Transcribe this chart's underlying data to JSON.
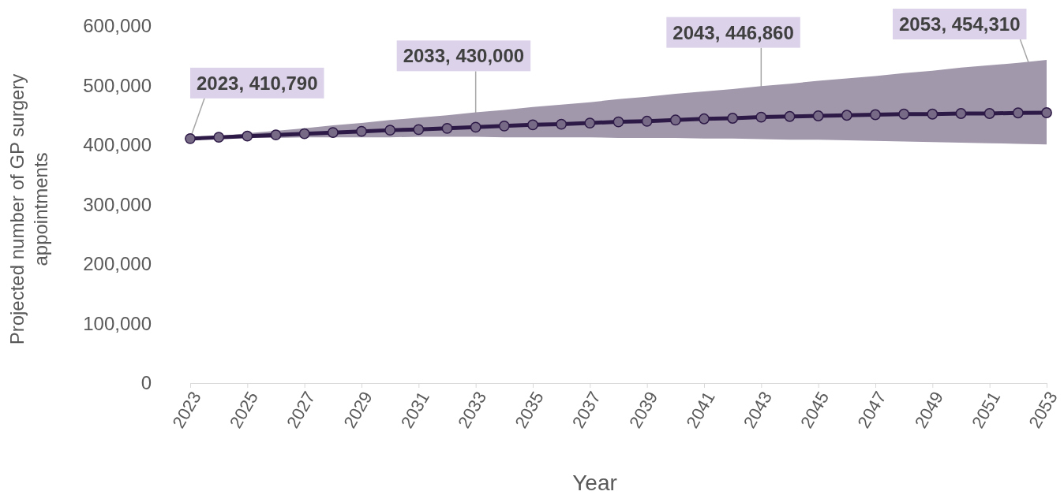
{
  "chart_data": {
    "type": "line",
    "xlabel": "Year",
    "ylabel": "Projected number of GP surgery appointments",
    "x": [
      2023,
      2024,
      2025,
      2026,
      2027,
      2028,
      2029,
      2030,
      2031,
      2032,
      2033,
      2034,
      2035,
      2036,
      2037,
      2038,
      2039,
      2040,
      2041,
      2042,
      2043,
      2044,
      2045,
      2046,
      2047,
      2048,
      2049,
      2050,
      2051,
      2052,
      2053
    ],
    "series": [
      {
        "color": "#2e1a47",
        "values": [
          410790,
          413000,
          415000,
          417000,
          419000,
          421000,
          423000,
          425000,
          426000,
          428000,
          430000,
          432000,
          434000,
          435000,
          437000,
          439000,
          440000,
          442000,
          444000,
          445000,
          446860,
          448000,
          449000,
          450000,
          451000,
          452000,
          452000,
          453000,
          453000,
          454000,
          454310
        ],
        "lower": [
          411000,
          412000,
          412000,
          412000,
          413000,
          413000,
          413000,
          413000,
          414000,
          414000,
          414000,
          413000,
          413000,
          413000,
          413000,
          412000,
          412000,
          412000,
          411000,
          411000,
          410000,
          409000,
          409000,
          408000,
          407000,
          406000,
          405000,
          404000,
          403000,
          402000,
          401000
        ],
        "upper": [
          411000,
          415000,
          420000,
          424000,
          428000,
          433000,
          437000,
          442000,
          446000,
          450000,
          455000,
          459000,
          464000,
          468000,
          472000,
          477000,
          481000,
          486000,
          490000,
          494000,
          499000,
          503000,
          508000,
          512000,
          516000,
          521000,
          525000,
          530000,
          534000,
          538000,
          543000
        ]
      }
    ],
    "xlim": [
      2023,
      2053
    ],
    "xticks": [
      2023,
      2025,
      2027,
      2029,
      2031,
      2033,
      2035,
      2037,
      2039,
      2041,
      2043,
      2045,
      2047,
      2049,
      2051,
      2053
    ],
    "ylim": [
      0,
      600000
    ],
    "yticks": [
      {
        "value": 0,
        "label": "0"
      },
      {
        "value": 100000,
        "label": "100,000"
      },
      {
        "value": 200000,
        "label": "200,000"
      },
      {
        "value": 300000,
        "label": "300,000"
      },
      {
        "value": 400000,
        "label": "400,000"
      },
      {
        "value": 500000,
        "label": "500,000"
      },
      {
        "value": 600000,
        "label": "600,000"
      }
    ],
    "grid": false,
    "marker": "circle",
    "line_style": "solid",
    "annotations": [
      {
        "text": "2023, 410,790",
        "x": 2023,
        "y": 410790
      },
      {
        "text": "2033, 430,000",
        "x": 2033,
        "y": 430000
      },
      {
        "text": "2043, 446,860",
        "x": 2043,
        "y": 446860
      },
      {
        "text": "2053, 454,310",
        "x": 2053,
        "y": 454310
      }
    ]
  }
}
